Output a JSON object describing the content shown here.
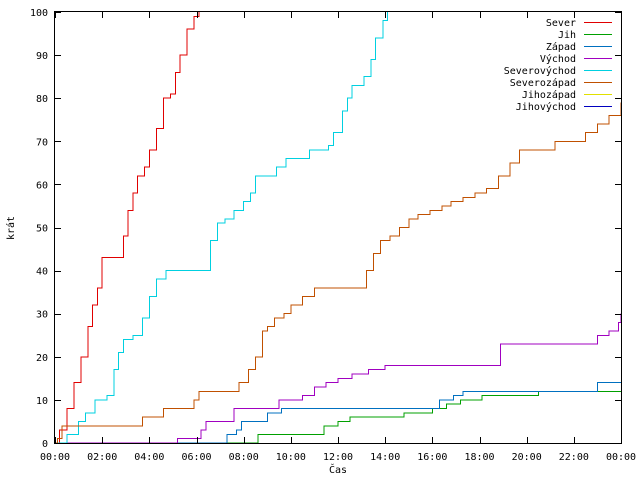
{
  "chart_data": {
    "type": "line",
    "xlabel": "Čas",
    "ylabel": "krát",
    "xlim": [
      0,
      24
    ],
    "ylim": [
      0,
      100
    ],
    "x_ticks": [
      {
        "value": 0,
        "label": "00:00"
      },
      {
        "value": 2,
        "label": "02:00"
      },
      {
        "value": 4,
        "label": "04:00"
      },
      {
        "value": 6,
        "label": "06:00"
      },
      {
        "value": 8,
        "label": "08:00"
      },
      {
        "value": 10,
        "label": "10:00"
      },
      {
        "value": 12,
        "label": "12:00"
      },
      {
        "value": 14,
        "label": "14:00"
      },
      {
        "value": 16,
        "label": "16:00"
      },
      {
        "value": 18,
        "label": "18:00"
      },
      {
        "value": 20,
        "label": "20:00"
      },
      {
        "value": 22,
        "label": "22:00"
      },
      {
        "value": 24,
        "label": "00:00"
      }
    ],
    "y_ticks": [
      {
        "value": 0,
        "label": "0"
      },
      {
        "value": 10,
        "label": "10"
      },
      {
        "value": 20,
        "label": "20"
      },
      {
        "value": 30,
        "label": "30"
      },
      {
        "value": 40,
        "label": "40"
      },
      {
        "value": 50,
        "label": "50"
      },
      {
        "value": 60,
        "label": "60"
      },
      {
        "value": 70,
        "label": "70"
      },
      {
        "value": 80,
        "label": "80"
      },
      {
        "value": 90,
        "label": "90"
      },
      {
        "value": 100,
        "label": "100"
      }
    ],
    "grid": false,
    "legend_position": "top-right",
    "series": [
      {
        "name": "Sever",
        "color": "#e00000",
        "points": [
          [
            0,
            0
          ],
          [
            0.2,
            3
          ],
          [
            0.5,
            8
          ],
          [
            0.8,
            14
          ],
          [
            1.1,
            20
          ],
          [
            1.4,
            27
          ],
          [
            1.6,
            32
          ],
          [
            1.8,
            36
          ],
          [
            2.0,
            43
          ],
          [
            2.2,
            43
          ],
          [
            2.7,
            43
          ],
          [
            2.9,
            48
          ],
          [
            3.1,
            54
          ],
          [
            3.3,
            58
          ],
          [
            3.5,
            62
          ],
          [
            3.8,
            64
          ],
          [
            4.0,
            68
          ],
          [
            4.3,
            73
          ],
          [
            4.6,
            80
          ],
          [
            4.9,
            81
          ],
          [
            5.1,
            86
          ],
          [
            5.3,
            90
          ],
          [
            5.6,
            96
          ],
          [
            5.9,
            99
          ],
          [
            6.1,
            100
          ]
        ]
      },
      {
        "name": "Jih",
        "color": "#00a000",
        "points": [
          [
            0,
            0
          ],
          [
            8.6,
            0
          ],
          [
            8.6,
            2
          ],
          [
            11.3,
            2
          ],
          [
            11.4,
            4
          ],
          [
            12.0,
            5
          ],
          [
            12.5,
            6
          ],
          [
            14.8,
            7
          ],
          [
            16.0,
            8
          ],
          [
            16.6,
            9
          ],
          [
            17.2,
            10
          ],
          [
            18.1,
            11
          ],
          [
            20.5,
            12
          ],
          [
            24,
            12
          ]
        ]
      },
      {
        "name": "Západ",
        "color": "#0070c0",
        "points": [
          [
            0,
            0
          ],
          [
            7.2,
            0
          ],
          [
            7.3,
            2
          ],
          [
            7.7,
            3
          ],
          [
            7.9,
            5
          ],
          [
            8.9,
            5
          ],
          [
            9.0,
            7
          ],
          [
            9.6,
            8
          ],
          [
            16.0,
            8
          ],
          [
            16.3,
            10
          ],
          [
            16.9,
            11
          ],
          [
            17.3,
            12
          ],
          [
            22.8,
            12
          ],
          [
            23.0,
            14
          ],
          [
            24,
            14
          ]
        ]
      },
      {
        "name": "Východ",
        "color": "#a000c0",
        "points": [
          [
            0,
            0
          ],
          [
            5.1,
            0
          ],
          [
            5.2,
            1
          ],
          [
            5.9,
            1
          ],
          [
            6.2,
            3
          ],
          [
            6.4,
            5
          ],
          [
            7.4,
            5
          ],
          [
            7.6,
            8
          ],
          [
            9.2,
            8
          ],
          [
            9.5,
            10
          ],
          [
            10.5,
            11
          ],
          [
            11.0,
            13
          ],
          [
            11.5,
            14
          ],
          [
            12.0,
            15
          ],
          [
            12.6,
            16
          ],
          [
            13.3,
            17
          ],
          [
            14.0,
            18
          ],
          [
            18.6,
            18
          ],
          [
            18.9,
            23
          ],
          [
            22.8,
            23
          ],
          [
            23.0,
            25
          ],
          [
            23.5,
            26
          ],
          [
            23.9,
            28
          ],
          [
            24,
            30
          ]
        ]
      },
      {
        "name": "Severovýchod",
        "color": "#00d0e0",
        "points": [
          [
            0,
            0
          ],
          [
            0.3,
            0
          ],
          [
            0.5,
            2
          ],
          [
            1.0,
            5
          ],
          [
            1.3,
            7
          ],
          [
            1.7,
            10
          ],
          [
            2.2,
            11
          ],
          [
            2.5,
            17
          ],
          [
            2.7,
            21
          ],
          [
            2.9,
            24
          ],
          [
            3.3,
            25
          ],
          [
            3.7,
            29
          ],
          [
            4.0,
            34
          ],
          [
            4.3,
            38
          ],
          [
            4.7,
            40
          ],
          [
            6.2,
            40
          ],
          [
            6.6,
            47
          ],
          [
            6.9,
            51
          ],
          [
            7.2,
            52
          ],
          [
            7.6,
            54
          ],
          [
            8.0,
            56
          ],
          [
            8.3,
            58
          ],
          [
            8.5,
            62
          ],
          [
            9.0,
            62
          ],
          [
            9.4,
            64
          ],
          [
            9.8,
            66
          ],
          [
            10.5,
            66
          ],
          [
            10.8,
            68
          ],
          [
            11.6,
            69
          ],
          [
            11.8,
            72
          ],
          [
            12.2,
            77
          ],
          [
            12.4,
            80
          ],
          [
            12.6,
            83
          ],
          [
            13.1,
            85
          ],
          [
            13.4,
            89
          ],
          [
            13.6,
            94
          ],
          [
            13.9,
            98
          ],
          [
            14.1,
            100
          ]
        ]
      },
      {
        "name": "Severozápad",
        "color": "#c05000",
        "points": [
          [
            0,
            0
          ],
          [
            0.1,
            1
          ],
          [
            0.3,
            4
          ],
          [
            3.6,
            4
          ],
          [
            3.7,
            6
          ],
          [
            4.5,
            6
          ],
          [
            4.6,
            8
          ],
          [
            5.8,
            8
          ],
          [
            5.9,
            10
          ],
          [
            6.1,
            12
          ],
          [
            7.5,
            12
          ],
          [
            7.8,
            14
          ],
          [
            8.2,
            17
          ],
          [
            8.5,
            20
          ],
          [
            8.8,
            26
          ],
          [
            9.0,
            27
          ],
          [
            9.3,
            29
          ],
          [
            9.7,
            30
          ],
          [
            10.0,
            32
          ],
          [
            10.5,
            34
          ],
          [
            11.0,
            36
          ],
          [
            12.8,
            36
          ],
          [
            13.2,
            40
          ],
          [
            13.5,
            44
          ],
          [
            13.8,
            47
          ],
          [
            14.2,
            48
          ],
          [
            14.6,
            50
          ],
          [
            15.0,
            52
          ],
          [
            15.4,
            53
          ],
          [
            15.9,
            54
          ],
          [
            16.4,
            55
          ],
          [
            16.8,
            56
          ],
          [
            17.3,
            57
          ],
          [
            17.8,
            58
          ],
          [
            18.3,
            59
          ],
          [
            18.8,
            62
          ],
          [
            19.3,
            65
          ],
          [
            19.7,
            68
          ],
          [
            21.0,
            68
          ],
          [
            21.2,
            70
          ],
          [
            22.2,
            70
          ],
          [
            22.5,
            72
          ],
          [
            23.0,
            74
          ],
          [
            23.5,
            76
          ],
          [
            24,
            79
          ]
        ]
      },
      {
        "name": "Jihozápad",
        "color": "#e0e000",
        "points": []
      },
      {
        "name": "Jihovýchod",
        "color": "#0000c0",
        "points": []
      }
    ]
  }
}
